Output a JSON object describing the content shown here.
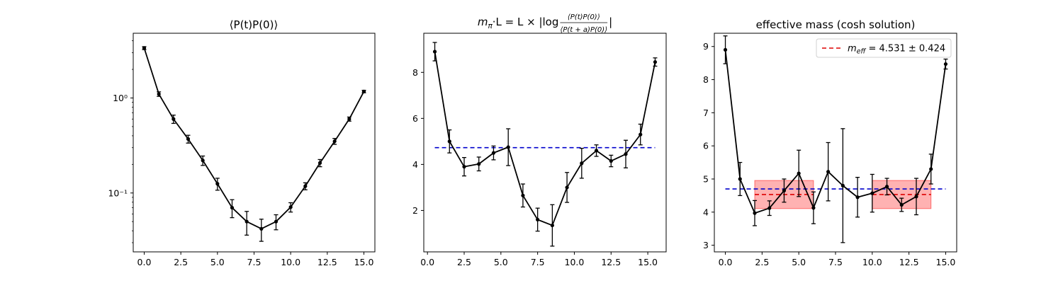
{
  "chart_data": [
    {
      "type": "line",
      "title": "⟨P(t)P(0)⟩",
      "xlabel": "",
      "ylabel": "",
      "yscale": "log",
      "xlim": [
        -0.75,
        15.75
      ],
      "ylim": [
        0.024,
        4.8
      ],
      "xticks": [
        0.0,
        2.5,
        5.0,
        7.5,
        10.0,
        12.5,
        15.0
      ],
      "xtick_labels": [
        "0.0",
        "2.5",
        "5.0",
        "7.5",
        "10.0",
        "12.5",
        "15.0"
      ],
      "yticks": [
        0.1,
        1
      ],
      "ytick_labels": [
        "10⁻¹",
        "10⁰"
      ],
      "series": [
        {
          "color": "#000000",
          "x": [
            0,
            1,
            2,
            3,
            4,
            5,
            6,
            7,
            8,
            9,
            10,
            11,
            12,
            13,
            14,
            15
          ],
          "y": [
            3.35,
            1.1,
            0.6,
            0.37,
            0.22,
            0.125,
            0.07,
            0.05,
            0.042,
            0.05,
            0.071,
            0.118,
            0.207,
            0.35,
            0.6,
            1.17
          ],
          "yerr": [
            0.12,
            0.06,
            0.06,
            0.035,
            0.025,
            0.018,
            0.015,
            0.014,
            0.011,
            0.009,
            0.008,
            0.01,
            0.018,
            0.025,
            0.03,
            0.035
          ]
        }
      ],
      "hlines": [],
      "bands": []
    },
    {
      "type": "line",
      "title": "m_π·L = L × |log ⟨P(t)P(0)⟩ / ⟨P(t+a)P(0)⟩|",
      "title_parts": {
        "lhs": "m",
        "lhs_sub": "π",
        "mid": "·L = L × |log",
        "num": "⟨P(t)P(0)⟩",
        "den": "⟨P(t + a)P(0)⟩",
        "end": "|"
      },
      "xlabel": "",
      "ylabel": "",
      "xlim": [
        -0.25,
        16.25
      ],
      "ylim": [
        0.2,
        9.7
      ],
      "xticks": [
        0.0,
        2.5,
        5.0,
        7.5,
        10.0,
        12.5,
        15.0
      ],
      "xtick_labels": [
        "0.0",
        "2.5",
        "5.0",
        "7.5",
        "10.0",
        "12.5",
        "15.0"
      ],
      "yticks": [
        2,
        4,
        6,
        8
      ],
      "ytick_labels": [
        "2",
        "4",
        "6",
        "8"
      ],
      "series": [
        {
          "color": "#000000",
          "x": [
            0.5,
            1.5,
            2.5,
            3.5,
            4.5,
            5.5,
            6.5,
            7.5,
            8.5,
            9.5,
            10.5,
            11.5,
            12.5,
            13.5,
            14.5,
            15.5
          ],
          "y": [
            8.9,
            5.0,
            3.9,
            4.02,
            4.5,
            4.75,
            2.65,
            1.6,
            1.35,
            3.0,
            4.05,
            4.6,
            4.15,
            4.45,
            5.3,
            8.45
          ],
          "yerr": [
            0.4,
            0.5,
            0.4,
            0.3,
            0.3,
            0.8,
            0.5,
            0.5,
            0.9,
            0.65,
            0.65,
            0.25,
            0.25,
            0.6,
            0.45,
            0.18
          ]
        }
      ],
      "hlines": [
        {
          "y": 4.73,
          "xmin": 0.5,
          "xmax": 15.5,
          "color": "#0000cc",
          "style": "dashed"
        }
      ],
      "bands": []
    },
    {
      "type": "line",
      "title": "effective mass (cosh solution)",
      "xlabel": "",
      "ylabel": "",
      "xlim": [
        -0.75,
        15.75
      ],
      "ylim": [
        2.8,
        9.4
      ],
      "xticks": [
        0.0,
        2.5,
        5.0,
        7.5,
        10.0,
        12.5,
        15.0
      ],
      "xtick_labels": [
        "0.0",
        "2.5",
        "5.0",
        "7.5",
        "10.0",
        "12.5",
        "15.0"
      ],
      "yticks": [
        3,
        4,
        5,
        6,
        7,
        8,
        9
      ],
      "ytick_labels": [
        "3",
        "4",
        "5",
        "6",
        "7",
        "8",
        "9"
      ],
      "series": [
        {
          "color": "#000000",
          "x": [
            0,
            1,
            2,
            3,
            4,
            5,
            6,
            7,
            8,
            9,
            10,
            11,
            12,
            13,
            14,
            15
          ],
          "y": [
            8.9,
            5.0,
            3.97,
            4.12,
            4.65,
            5.17,
            4.13,
            5.22,
            4.8,
            4.45,
            4.57,
            4.77,
            4.22,
            4.47,
            5.3,
            8.47
          ],
          "yerr": [
            0.42,
            0.5,
            0.38,
            0.22,
            0.35,
            0.7,
            0.48,
            0.88,
            1.72,
            0.6,
            0.57,
            0.25,
            0.2,
            0.55,
            0.45,
            0.15
          ]
        }
      ],
      "hlines": [
        {
          "y": 4.7,
          "xmin": 0,
          "xmax": 15,
          "color": "#0000cc",
          "style": "dashed"
        },
        {
          "y": 4.531,
          "xmin": 2,
          "xmax": 6,
          "color": "#dd0000",
          "style": "dashed"
        },
        {
          "y": 4.531,
          "xmin": 10,
          "xmax": 14,
          "color": "#dd0000",
          "style": "dashed"
        }
      ],
      "bands": [
        {
          "xmin": 2,
          "xmax": 6,
          "ymin": 4.107,
          "ymax": 4.955,
          "color": "#ff0000",
          "opacity": 0.3
        },
        {
          "xmin": 10,
          "xmax": 14,
          "ymin": 4.107,
          "ymax": 4.955,
          "color": "#ff0000",
          "opacity": 0.3
        }
      ],
      "legend": {
        "placement": "top-right",
        "entries": [
          {
            "color": "#dd0000",
            "style": "dashed",
            "label_prefix": "m",
            "label_sub": "eff",
            "label_rest": " = 4.531 ± 0.424"
          }
        ]
      }
    }
  ]
}
